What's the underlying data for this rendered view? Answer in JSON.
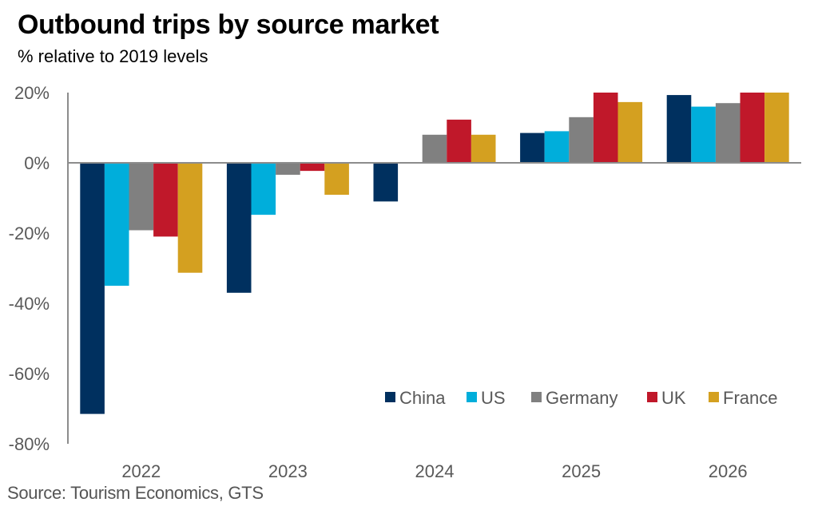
{
  "chart_data": {
    "type": "bar",
    "title": "Outbound trips by source market",
    "subtitle": "% relative to 2019 levels",
    "source": "Source: Tourism Economics, GTS",
    "xlabel": "",
    "ylabel": "",
    "ylim": [
      -80,
      20
    ],
    "yticks": [
      20,
      0,
      -20,
      -40,
      -60,
      -80
    ],
    "ytick_labels": [
      "20%",
      "0%",
      "-20%",
      "-40%",
      "-60%",
      "-80%"
    ],
    "grid": false,
    "legend_position": "bottom-right",
    "categories": [
      "2022",
      "2023",
      "2024",
      "2025",
      "2026"
    ],
    "series": [
      {
        "name": "China",
        "color": "#00305F",
        "values": [
          -71.5,
          -37,
          -11,
          8.5,
          19.3
        ]
      },
      {
        "name": "US",
        "color": "#00AEDB",
        "values": [
          -35,
          -14.8,
          0,
          9,
          16
        ]
      },
      {
        "name": "Germany",
        "color": "#808080",
        "values": [
          -19.2,
          -3.4,
          8,
          13,
          17
        ]
      },
      {
        "name": "UK",
        "color": "#C0182A",
        "values": [
          -21,
          -2.3,
          12.3,
          20,
          20
        ]
      },
      {
        "name": "France",
        "color": "#D4A020",
        "values": [
          -31.3,
          -9.1,
          8,
          17.3,
          20
        ]
      }
    ]
  }
}
